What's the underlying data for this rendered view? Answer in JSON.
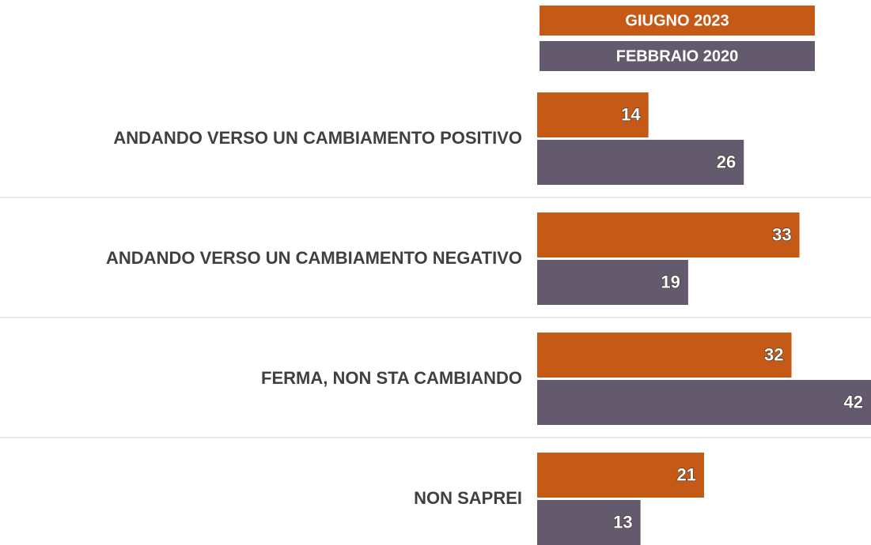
{
  "chart_data": {
    "type": "bar",
    "orientation": "horizontal",
    "categories": [
      "ANDANDO VERSO UN CAMBIAMENTO POSITIVO",
      "ANDANDO VERSO UN CAMBIAMENTO NEGATIVO",
      "FERMA, NON STA CAMBIANDO",
      "NON SAPREI"
    ],
    "series": [
      {
        "name": "GIUGNO 2023",
        "color": "#c55a17",
        "values": [
          14,
          33,
          32,
          21
        ]
      },
      {
        "name": "FEBBRAIO 2020",
        "color": "#635a6e",
        "values": [
          26,
          19,
          42,
          13
        ]
      }
    ]
  }
}
